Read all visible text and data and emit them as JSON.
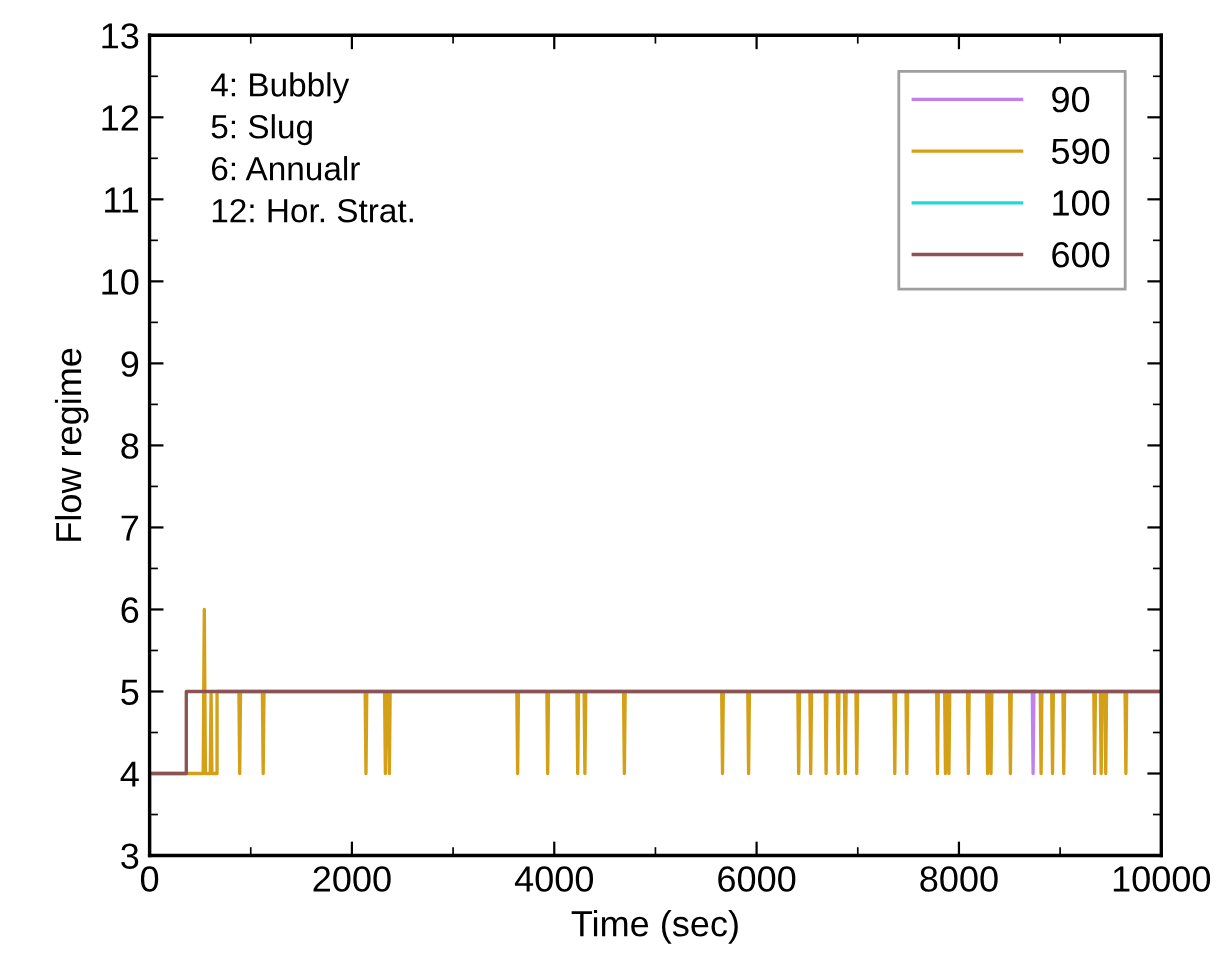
{
  "chart_data": {
    "type": "line",
    "xlabel": "Time (sec)",
    "ylabel": "Flow regime",
    "xlim": [
      0,
      10000
    ],
    "xticks": [
      0,
      2000,
      4000,
      6000,
      8000,
      10000
    ],
    "ylim": [
      3,
      13
    ],
    "yticks": [
      3,
      4,
      5,
      6,
      7,
      8,
      9,
      10,
      11,
      12,
      13
    ],
    "grid": false,
    "legend": "top right",
    "marker": "none",
    "line_style": "solid",
    "annotations": [
      "4: Bubbly",
      "5: Slug",
      "6: Annualr",
      "12: Hor. Strat."
    ],
    "series": [
      {
        "name": "90",
        "color": "#c080f0",
        "x": [
          8725,
          8733,
          8741
        ],
        "values": [
          5,
          4,
          5
        ]
      },
      {
        "name": "590",
        "color": "#d4a017",
        "x": [
          0,
          530,
          541,
          552,
          600,
          608,
          616,
          667,
          667,
          883,
          891,
          899,
          1115,
          1123,
          1131,
          2131,
          2139,
          2147,
          2323,
          2331,
          2339,
          2362,
          2370,
          2378,
          3630,
          3638,
          3646,
          3927,
          3935,
          3943,
          4224,
          4232,
          4240,
          4295,
          4303,
          4311,
          4685,
          4693,
          4701,
          5655,
          5663,
          5671,
          5913,
          5921,
          5929,
          6408,
          6416,
          6424,
          6527,
          6535,
          6543,
          6679,
          6687,
          6695,
          6798,
          6806,
          6814,
          6869,
          6877,
          6885,
          6982,
          6990,
          6998,
          7358,
          7366,
          7374,
          7477,
          7485,
          7493,
          7780,
          7788,
          7796,
          7859,
          7867,
          7875,
          7893,
          7901,
          7909,
          8085,
          8093,
          8101,
          8275,
          8283,
          8291,
          8309,
          8317,
          8325,
          8501,
          8509,
          8517,
          8804,
          8812,
          8820,
          8917,
          8925,
          8933,
          9028,
          9036,
          9044,
          9333,
          9341,
          9349,
          9398,
          9406,
          9414,
          9443,
          9451,
          9459,
          9642,
          9650,
          9658,
          10000
        ],
        "values": [
          4,
          4,
          6,
          4,
          4,
          5,
          4,
          4,
          5,
          5,
          4,
          5,
          5,
          4,
          5,
          5,
          4,
          5,
          5,
          4,
          5,
          5,
          4,
          5,
          5,
          4,
          5,
          5,
          4,
          5,
          5,
          4,
          5,
          5,
          4,
          5,
          5,
          4,
          5,
          5,
          4,
          5,
          5,
          4,
          5,
          5,
          4,
          5,
          5,
          4,
          5,
          5,
          4,
          5,
          5,
          4,
          5,
          5,
          4,
          5,
          5,
          4,
          5,
          5,
          4,
          5,
          5,
          4,
          5,
          5,
          4,
          5,
          5,
          4,
          5,
          5,
          4,
          5,
          5,
          4,
          5,
          5,
          4,
          5,
          5,
          4,
          5,
          5,
          4,
          5,
          5,
          4,
          5,
          5,
          4,
          5,
          5,
          4,
          5,
          5,
          4,
          5,
          5,
          4,
          5,
          5,
          4,
          5,
          5,
          4,
          5,
          5
        ]
      },
      {
        "name": "100",
        "color": "#20d8d8"
      },
      {
        "name": "600",
        "color": "#8b5454",
        "x": [
          0,
          0,
          363,
          363,
          10000
        ],
        "values": [
          3,
          4,
          4,
          5,
          5
        ]
      }
    ]
  }
}
